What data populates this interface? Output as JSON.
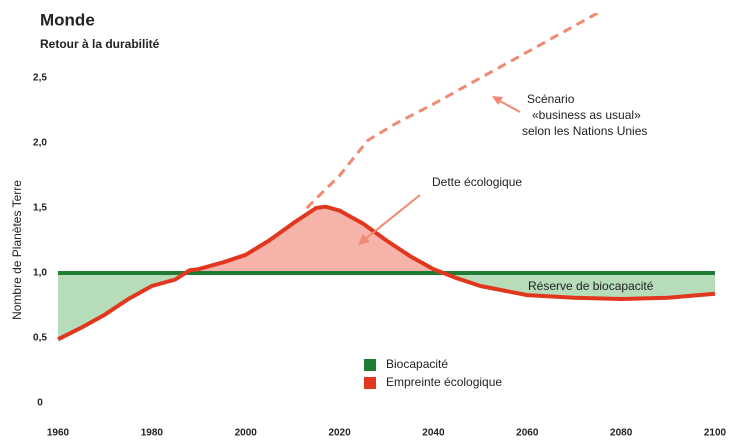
{
  "chart_data": {
    "type": "line",
    "title": "Monde",
    "subtitle": "Retour à la durabilité",
    "y_label": "Nombre de Planètes Terre",
    "annotations": {
      "scenario": [
        "Scénario",
        "«business as usual»",
        "selon les Nations Unies"
      ],
      "debt": "Dette écologique",
      "reserve": "Réserve de biocapacité"
    },
    "xlim": [
      1960,
      2100
    ],
    "xticks": [
      1960,
      1980,
      2000,
      2020,
      2040,
      2060,
      2080,
      2100
    ],
    "ylim": [
      0,
      3.0
    ],
    "yticks": [
      0,
      {
        "value": 0.5,
        "label": "0,5"
      },
      {
        "value": 1.0,
        "label": "1,0"
      },
      {
        "value": 1.5,
        "label": "1,5"
      },
      {
        "value": 2.0,
        "label": "2,0"
      },
      {
        "value": 2.5,
        "label": "2,5"
      }
    ],
    "series": [
      {
        "name": "Biocapacité",
        "color": "#1e7d32",
        "x": [
          1960,
          2100
        ],
        "values": [
          1.0,
          1.0
        ]
      },
      {
        "name": "Empreinte écologique",
        "color": "#e2371f",
        "x": [
          1960,
          1965,
          1970,
          1975,
          1980,
          1985,
          1988,
          1990,
          1995,
          2000,
          2005,
          2010,
          2015,
          2017,
          2020,
          2025,
          2030,
          2035,
          2040,
          2045,
          2050,
          2060,
          2070,
          2080,
          2090,
          2100
        ],
        "values": [
          0.49,
          0.58,
          0.68,
          0.8,
          0.9,
          0.95,
          1.02,
          1.03,
          1.08,
          1.14,
          1.25,
          1.38,
          1.5,
          1.51,
          1.48,
          1.38,
          1.25,
          1.13,
          1.03,
          0.96,
          0.9,
          0.83,
          0.81,
          0.8,
          0.81,
          0.84
        ]
      },
      {
        "color": "#f08a72",
        "dashed": true,
        "x": [
          2013,
          2020,
          2026,
          2032,
          2040,
          2050,
          2060,
          2070,
          2075
        ],
        "values": [
          1.5,
          1.75,
          2.02,
          2.15,
          2.3,
          2.5,
          2.7,
          2.9,
          3.0
        ]
      }
    ],
    "fills": {
      "above": "#f5b3aa",
      "below": "#b6dcb9"
    }
  }
}
